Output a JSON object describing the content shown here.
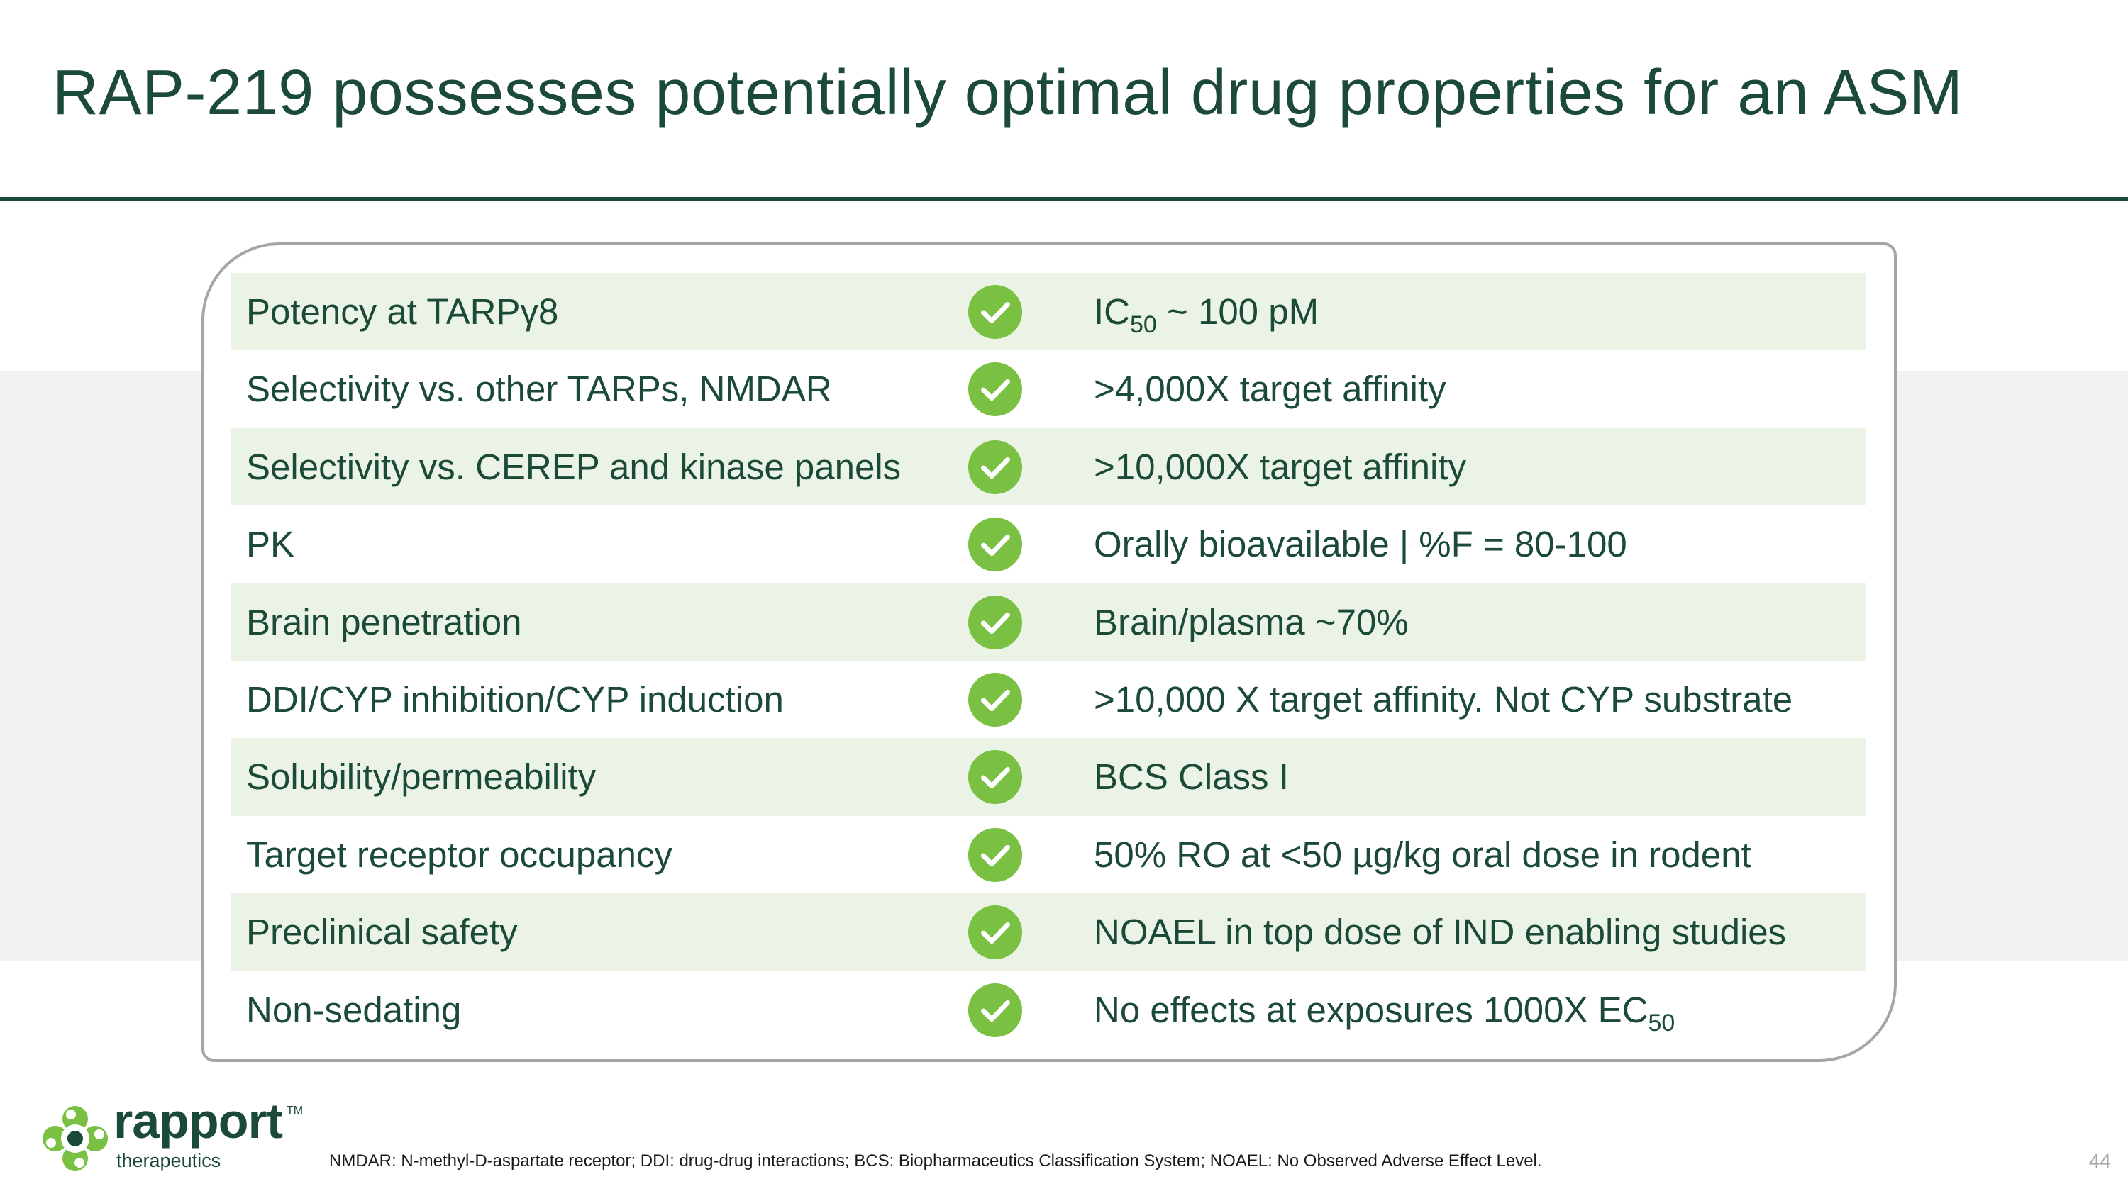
{
  "slide": {
    "title": "RAP-219 possesses potentially optimal drug properties for an ASM",
    "page_number": "44",
    "footnote": "NMDAR: N-methyl-D-aspartate receptor; DDI: drug-drug interactions; BCS: Biopharmaceutics Classification System; NOAEL: No Observed Adverse Effect Level."
  },
  "brand": {
    "name": "rapport",
    "trademark": "TM",
    "tagline": "therapeutics",
    "logo_icon": "rapport-logo-icon"
  },
  "colors": {
    "title_green": "#1c4a38",
    "row_shade": "#eaf3e6",
    "check_green": "#7ac143",
    "band_gray": "#f2f2f2",
    "card_border": "#a6a6a6"
  },
  "status_icon": "check-circle-icon",
  "properties": [
    {
      "property": "Potency at TARPγ8",
      "value": "IC",
      "value_sub": "50",
      "value_after": " ~ 100 pM"
    },
    {
      "property": "Selectivity vs. other TARPs, NMDAR",
      "value": ">4,000X target affinity",
      "value_sub": "",
      "value_after": ""
    },
    {
      "property": "Selectivity vs. CEREP and kinase panels",
      "value": ">10,000X target affinity",
      "value_sub": "",
      "value_after": ""
    },
    {
      "property": "PK",
      "value": "Orally bioavailable  | %F = 80-100",
      "value_sub": "",
      "value_after": ""
    },
    {
      "property": "Brain penetration",
      "value": "Brain/plasma ~70%",
      "value_sub": "",
      "value_after": ""
    },
    {
      "property": "DDI/CYP inhibition/CYP induction",
      "value": ">10,000 X target affinity. Not CYP substrate",
      "value_sub": "",
      "value_after": ""
    },
    {
      "property": "Solubility/permeability",
      "value": "BCS Class I",
      "value_sub": "",
      "value_after": ""
    },
    {
      "property": "Target receptor occupancy",
      "value": "50% RO at <50 µg/kg oral dose in rodent",
      "value_sub": "",
      "value_after": ""
    },
    {
      "property": "Preclinical safety",
      "value": "NOAEL in top dose of IND enabling studies",
      "value_sub": "",
      "value_after": ""
    },
    {
      "property": "Non-sedating",
      "value": "No effects at exposures 1000X EC",
      "value_sub": "50",
      "value_after": ""
    }
  ]
}
